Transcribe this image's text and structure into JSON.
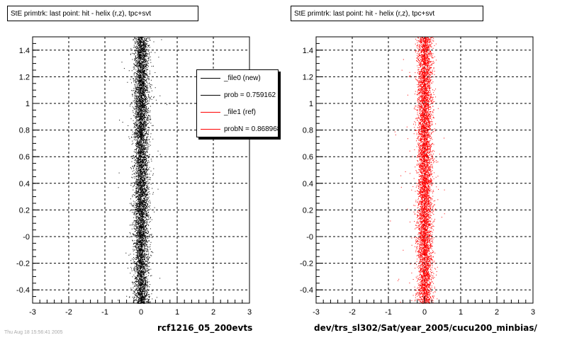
{
  "titles": {
    "left": "StE primtrk: last point: hit - helix (r,z), tpc+svt",
    "right": "StE primtrk: last point: hit - helix (r,z), tpc+svt"
  },
  "captions": {
    "left": "rcf1216_05_200evts",
    "right": "dev/trs_sl302/Sat/year_2005/cucu200_minbias/"
  },
  "footer": "Thu Aug 18 15:56:41 2005",
  "legend": {
    "entries": [
      {
        "label": "_file0 (new)",
        "color": "#000000"
      },
      {
        "label": "prob = 0.759162",
        "color": "#000000"
      },
      {
        "label": "_file1 (ref)",
        "color": "#ff0000"
      },
      {
        "label": "probN = 0.868968",
        "color": "#ff0000"
      }
    ]
  },
  "chart_data": [
    {
      "type": "scatter",
      "name": "left-panel",
      "color": "#000000",
      "xlim": [
        -3,
        3
      ],
      "ylim": [
        -0.5,
        1.5
      ],
      "xticks": [
        "-3",
        "-2",
        "-1",
        "0",
        "1",
        "2",
        "3"
      ],
      "yticks": [
        "-0.4",
        "-0.2",
        "-0",
        "0.2",
        "0.4",
        "0.6",
        "0.8",
        "1",
        "1.2",
        "1.4"
      ],
      "grid": true,
      "distribution": {
        "x_center": 0.0,
        "x_sigma": 0.1,
        "y_range": [
          -0.5,
          1.5
        ],
        "points": 6500
      }
    },
    {
      "type": "scatter",
      "name": "right-panel",
      "color": "#ff0000",
      "xlim": [
        -3,
        3
      ],
      "ylim": [
        -0.5,
        1.5
      ],
      "xticks": [
        "-3",
        "-2",
        "-1",
        "0",
        "1",
        "2",
        "3"
      ],
      "yticks": [
        "-0.4",
        "-0.2",
        "-0",
        "0.2",
        "0.4",
        "0.6",
        "0.8",
        "1",
        "1.2",
        "1.4"
      ],
      "grid": true,
      "distribution": {
        "x_center": 0.0,
        "x_sigma": 0.1,
        "y_range": [
          -0.5,
          1.5
        ],
        "points": 6500
      }
    }
  ]
}
